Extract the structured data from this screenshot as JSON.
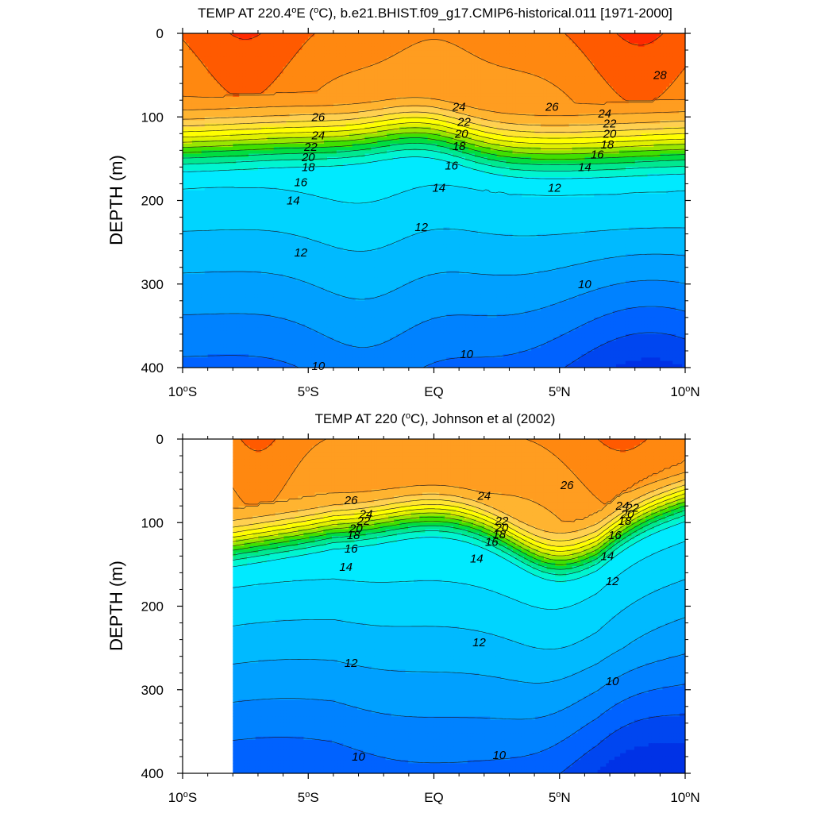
{
  "chart_data": [
    {
      "type": "contour",
      "title": "TEMP AT 220.4°E (°C), b.e21.BHIST.f09_g17.CMIP6-historical.011 [1971-2000]",
      "title_parts": [
        "TEMP AT 220.4",
        "o",
        "E (",
        "o",
        "C), b.e21.BHIST.f09_g17.CMIP6-historical.011 [1971-2000]"
      ],
      "ylabel": "DEPTH (m)",
      "xlim": [
        -10,
        10
      ],
      "ylim": [
        0,
        400
      ],
      "y_inverted": true,
      "x_ticks": [
        -10,
        -5,
        0,
        5,
        10
      ],
      "x_tick_labels": [
        "10",
        "5",
        "EQ",
        "5",
        "10"
      ],
      "x_tick_suffix": [
        "S",
        "S",
        "",
        "N",
        "N"
      ],
      "y_ticks": [
        0,
        100,
        200,
        300,
        400
      ],
      "y_tick_labels": [
        "0",
        "100",
        "200",
        "300",
        "400"
      ],
      "data_xmin": -10,
      "contour_interval": 1,
      "levels": [
        9,
        10,
        11,
        12,
        13,
        14,
        15,
        16,
        17,
        18,
        19,
        20,
        21,
        22,
        23,
        24,
        25,
        26,
        27,
        28
      ],
      "contour_labels": [
        {
          "text": "28",
          "lat": 9.0,
          "depth": 50
        },
        {
          "text": "26",
          "lat": -4.6,
          "depth": 100
        },
        {
          "text": "26",
          "lat": 4.7,
          "depth": 88
        },
        {
          "text": "24",
          "lat": -4.6,
          "depth": 122
        },
        {
          "text": "24",
          "lat": 1.0,
          "depth": 88
        },
        {
          "text": "24",
          "lat": 6.8,
          "depth": 96
        },
        {
          "text": "22",
          "lat": -4.9,
          "depth": 136
        },
        {
          "text": "22",
          "lat": 1.2,
          "depth": 106
        },
        {
          "text": "22",
          "lat": 7.0,
          "depth": 108
        },
        {
          "text": "20",
          "lat": -5.0,
          "depth": 148
        },
        {
          "text": "20",
          "lat": 1.1,
          "depth": 120
        },
        {
          "text": "20",
          "lat": 7.0,
          "depth": 120
        },
        {
          "text": "18",
          "lat": -5.0,
          "depth": 160
        },
        {
          "text": "18",
          "lat": 1.0,
          "depth": 135
        },
        {
          "text": "18",
          "lat": 6.9,
          "depth": 133
        },
        {
          "text": "16",
          "lat": -5.3,
          "depth": 178
        },
        {
          "text": "16",
          "lat": 0.7,
          "depth": 158
        },
        {
          "text": "16",
          "lat": 6.5,
          "depth": 145
        },
        {
          "text": "14",
          "lat": -5.6,
          "depth": 200
        },
        {
          "text": "14",
          "lat": 0.2,
          "depth": 185
        },
        {
          "text": "14",
          "lat": 6.0,
          "depth": 160
        },
        {
          "text": "12",
          "lat": -5.3,
          "depth": 262
        },
        {
          "text": "12",
          "lat": -0.5,
          "depth": 232
        },
        {
          "text": "12",
          "lat": 4.8,
          "depth": 185
        },
        {
          "text": "10",
          "lat": 6.0,
          "depth": 300
        },
        {
          "text": "10",
          "lat": 1.3,
          "depth": 384
        },
        {
          "text": "10",
          "lat": -4.6,
          "depth": 398
        }
      ]
    },
    {
      "type": "contour",
      "title": "TEMP AT 220 (°C), Johnson et al (2002)",
      "title_parts": [
        "TEMP AT 220 (",
        "o",
        "C), Johnson et al (2002)"
      ],
      "ylabel": "DEPTH (m)",
      "xlim": [
        -10,
        10
      ],
      "ylim": [
        0,
        400
      ],
      "y_inverted": true,
      "x_ticks": [
        -10,
        -5,
        0,
        5,
        10
      ],
      "x_tick_labels": [
        "10",
        "5",
        "EQ",
        "5",
        "10"
      ],
      "x_tick_suffix": [
        "S",
        "S",
        "",
        "N",
        "N"
      ],
      "y_ticks": [
        0,
        100,
        200,
        300,
        400
      ],
      "y_tick_labels": [
        "0",
        "100",
        "200",
        "300",
        "400"
      ],
      "data_xmin": -8,
      "contour_interval": 1,
      "levels": [
        9,
        10,
        11,
        12,
        13,
        14,
        15,
        16,
        17,
        18,
        19,
        20,
        21,
        22,
        23,
        24,
        25,
        26,
        27,
        28
      ],
      "contour_labels": [
        {
          "text": "26",
          "lat": -3.3,
          "depth": 73
        },
        {
          "text": "26",
          "lat": 5.3,
          "depth": 55
        },
        {
          "text": "24",
          "lat": -2.7,
          "depth": 90
        },
        {
          "text": "24",
          "lat": 2.0,
          "depth": 68
        },
        {
          "text": "24",
          "lat": 7.5,
          "depth": 80
        },
        {
          "text": "22",
          "lat": -2.8,
          "depth": 98
        },
        {
          "text": "22",
          "lat": 2.7,
          "depth": 98
        },
        {
          "text": "22",
          "lat": 7.9,
          "depth": 82
        },
        {
          "text": "20",
          "lat": -3.1,
          "depth": 107
        },
        {
          "text": "20",
          "lat": 2.7,
          "depth": 106
        },
        {
          "text": "20",
          "lat": 7.7,
          "depth": 90
        },
        {
          "text": "18",
          "lat": -3.2,
          "depth": 115
        },
        {
          "text": "18",
          "lat": 2.6,
          "depth": 114
        },
        {
          "text": "18",
          "lat": 7.6,
          "depth": 98
        },
        {
          "text": "16",
          "lat": -3.3,
          "depth": 131
        },
        {
          "text": "16",
          "lat": 2.3,
          "depth": 123
        },
        {
          "text": "16",
          "lat": 7.2,
          "depth": 115
        },
        {
          "text": "14",
          "lat": -3.5,
          "depth": 153
        },
        {
          "text": "14",
          "lat": 1.7,
          "depth": 143
        },
        {
          "text": "14",
          "lat": 6.9,
          "depth": 140
        },
        {
          "text": "12",
          "lat": 7.1,
          "depth": 170
        },
        {
          "text": "12",
          "lat": 1.8,
          "depth": 243
        },
        {
          "text": "12",
          "lat": -3.3,
          "depth": 268
        },
        {
          "text": "10",
          "lat": 7.1,
          "depth": 290
        },
        {
          "text": "10",
          "lat": -3.0,
          "depth": 380
        },
        {
          "text": "10",
          "lat": 2.6,
          "depth": 378
        }
      ]
    }
  ]
}
